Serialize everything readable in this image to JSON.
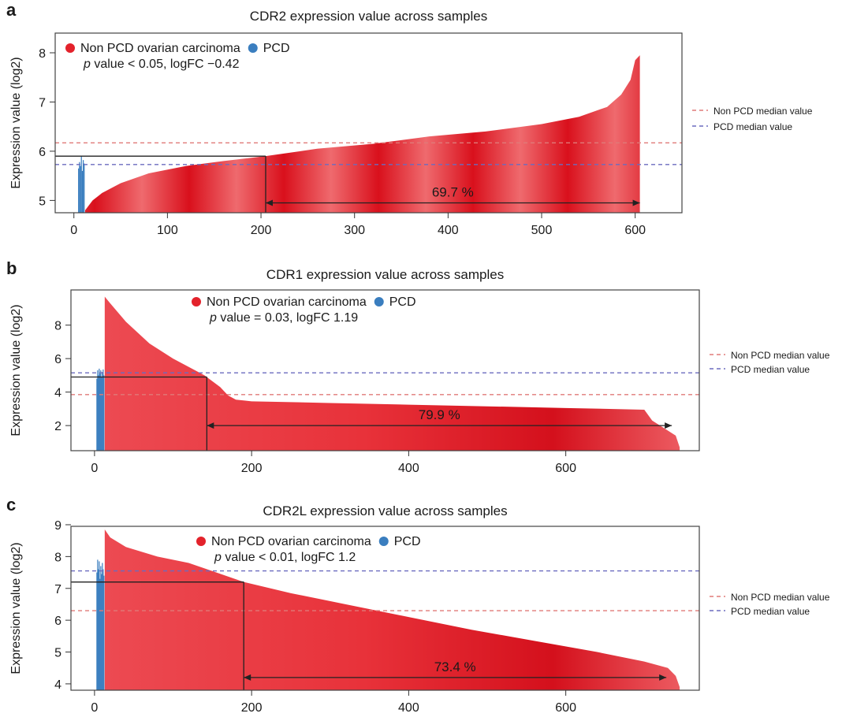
{
  "chart_data": [
    {
      "panel_label": "a",
      "type": "area",
      "title": "CDR2 expression value across samples",
      "ylabel": "Expression value (log2)",
      "xlabel": "",
      "xlim": [
        -20,
        650
      ],
      "ylim": [
        4.75,
        8.4
      ],
      "xticks": [
        0,
        100,
        200,
        300,
        400,
        500,
        600
      ],
      "yticks": [
        5,
        6,
        7,
        8
      ],
      "grid": false,
      "legend": {
        "placement": "top-left",
        "items": [
          "Non PCD ovarian carcinoma",
          "PCD"
        ],
        "note_p": "p",
        "note_rest": " value < 0.05, logFC −0.42"
      },
      "side_legend": [
        "Non PCD median value",
        "PCD median value"
      ],
      "series": [
        {
          "name": "PCD",
          "color": "#3a7ebf",
          "x": [
            5,
            6,
            7,
            8,
            9,
            10,
            11
          ],
          "values": [
            5.65,
            5.78,
            5.7,
            5.9,
            5.6,
            5.82,
            5.75
          ]
        },
        {
          "name": "Non PCD ovarian carcinoma",
          "color": "#e3222b",
          "x": [
            12,
            20,
            30,
            50,
            80,
            120,
            160,
            205,
            260,
            320,
            380,
            440,
            500,
            540,
            570,
            585,
            595,
            600,
            605
          ],
          "values": [
            4.8,
            5.0,
            5.15,
            5.35,
            5.55,
            5.7,
            5.8,
            5.9,
            6.05,
            6.15,
            6.3,
            6.4,
            6.55,
            6.7,
            6.9,
            7.15,
            7.45,
            7.85,
            7.95
          ]
        }
      ],
      "median_lines": [
        {
          "value": 6.17,
          "color": "#e07a78"
        },
        {
          "value": 5.73,
          "color": "#6b6bbf"
        }
      ],
      "threshold": {
        "x": 205,
        "y": 5.9
      },
      "annotation": {
        "text": "69.7 %",
        "x_from": 205,
        "x_to": 605,
        "y": 4.95
      }
    },
    {
      "panel_label": "b",
      "type": "area",
      "title": "CDR1 expression value across samples",
      "ylabel": "Expression value (log2)",
      "xlabel": "",
      "xlim": [
        -30,
        770
      ],
      "ylim": [
        0.5,
        10.1
      ],
      "xticks": [
        0,
        200,
        400,
        600
      ],
      "yticks": [
        2,
        4,
        6,
        8
      ],
      "grid": false,
      "legend": {
        "placement": "top-center",
        "items": [
          "Non PCD ovarian carcinoma",
          "PCD"
        ],
        "note_p": "p",
        "note_rest": " value = 0.03, logFC 1.19"
      },
      "side_legend": [
        "Non PCD median value",
        "PCD median value"
      ],
      "series": [
        {
          "name": "PCD",
          "color": "#3a7ebf",
          "x": [
            3,
            4,
            5,
            6,
            7,
            8,
            9,
            10,
            11,
            12
          ],
          "values": [
            4.8,
            5.3,
            5.0,
            5.4,
            5.1,
            5.3,
            4.9,
            5.2,
            5.35,
            5.0
          ]
        },
        {
          "name": "Non PCD ovarian carcinoma",
          "color": "#e3222b",
          "x": [
            13,
            20,
            40,
            70,
            100,
            140,
            160,
            170,
            180,
            200,
            300,
            400,
            500,
            600,
            700,
            710,
            720,
            740,
            745
          ],
          "values": [
            9.7,
            9.3,
            8.2,
            6.9,
            6.0,
            5.0,
            4.3,
            3.8,
            3.55,
            3.45,
            3.35,
            3.25,
            3.15,
            3.05,
            2.95,
            2.3,
            2.0,
            1.4,
            0.7
          ]
        }
      ],
      "median_lines": [
        {
          "value": 5.15,
          "color": "#6b6bbf"
        },
        {
          "value": 3.85,
          "color": "#e07a78"
        }
      ],
      "threshold": {
        "x": 143,
        "y": 4.9
      },
      "annotation": {
        "text": "79.9 %",
        "x_from": 143,
        "x_to": 735,
        "y": 2.0
      }
    },
    {
      "panel_label": "c",
      "type": "area",
      "title": "CDR2L expression value across samples",
      "ylabel": "Expression value (log2)",
      "xlabel": "",
      "xlim": [
        -30,
        770
      ],
      "ylim": [
        3.8,
        8.95
      ],
      "xticks": [
        0,
        200,
        400,
        600
      ],
      "yticks": [
        4,
        5,
        6,
        7,
        8,
        9
      ],
      "grid": false,
      "legend": {
        "placement": "top-center",
        "items": [
          "Non PCD ovarian carcinoma",
          "PCD"
        ],
        "note_p": "p",
        "note_rest": " value < 0.01, logFC 1.2"
      },
      "side_legend": [
        "Non PCD median value",
        "PCD median value"
      ],
      "series": [
        {
          "name": "PCD",
          "color": "#3a7ebf",
          "x": [
            3,
            4,
            5,
            6,
            7,
            8,
            9,
            10,
            11,
            12
          ],
          "values": [
            7.5,
            7.9,
            7.6,
            7.85,
            7.3,
            7.7,
            7.45,
            7.8,
            7.6,
            7.4
          ]
        },
        {
          "name": "Non PCD ovarian carcinoma",
          "color": "#e3222b",
          "x": [
            13,
            20,
            40,
            80,
            120,
            190,
            250,
            320,
            400,
            480,
            560,
            640,
            700,
            730,
            740,
            745
          ],
          "values": [
            8.85,
            8.6,
            8.3,
            8.0,
            7.8,
            7.2,
            6.85,
            6.5,
            6.1,
            5.7,
            5.35,
            5.0,
            4.7,
            4.5,
            4.25,
            3.9
          ]
        }
      ],
      "median_lines": [
        {
          "value": 7.55,
          "color": "#6b6bbf"
        },
        {
          "value": 6.3,
          "color": "#e07a78"
        }
      ],
      "threshold": {
        "x": 190,
        "y": 7.2
      },
      "annotation": {
        "text": "73.4 %",
        "x_from": 190,
        "x_to": 728,
        "y": 4.2
      }
    }
  ]
}
